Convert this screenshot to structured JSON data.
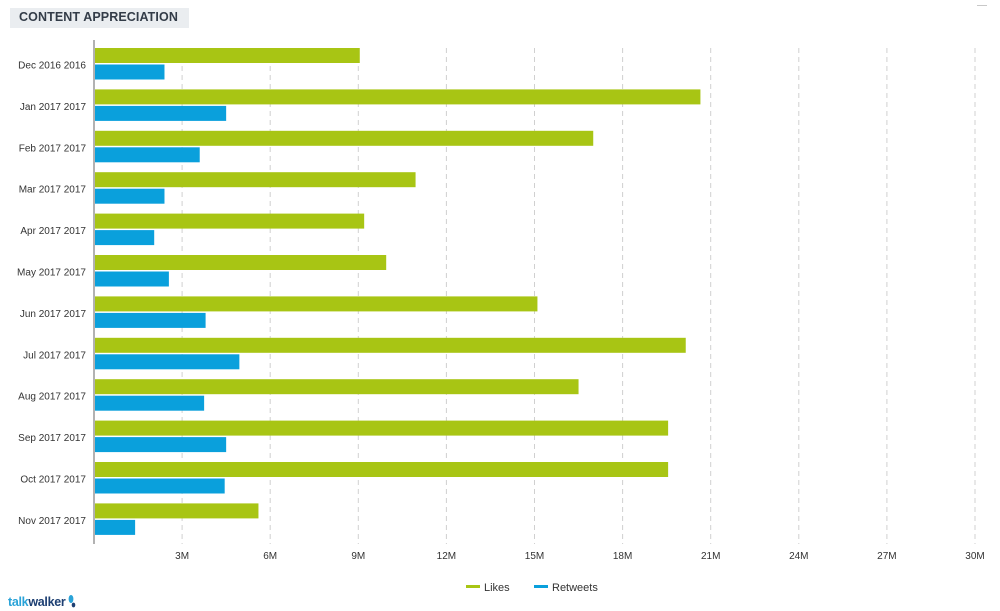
{
  "widget": {
    "title": "CONTENT APPRECIATION",
    "brand": {
      "part1": "talk",
      "part2": "walker"
    }
  },
  "colors": {
    "likes": "#a8c514",
    "retweets": "#0aa0dc",
    "axis": "#999999",
    "grid": "#d0d0d0"
  },
  "chart_data": {
    "type": "bar",
    "orientation": "horizontal",
    "title": "CONTENT APPRECIATION",
    "categories": [
      "Dec 2016 2016",
      "Jan 2017 2017",
      "Feb 2017 2017",
      "Mar 2017 2017",
      "Apr 2017 2017",
      "May 2017 2017",
      "Jun 2017 2017",
      "Jul 2017 2017",
      "Aug 2017 2017",
      "Sep 2017 2017",
      "Oct 2017 2017",
      "Nov 2017 2017"
    ],
    "series": [
      {
        "name": "Likes",
        "values": [
          9.05,
          20.65,
          17.0,
          10.95,
          9.2,
          9.95,
          15.1,
          20.15,
          16.5,
          19.55,
          19.55,
          5.6
        ]
      },
      {
        "name": "Retweets",
        "values": [
          2.4,
          4.5,
          3.6,
          2.4,
          2.05,
          2.55,
          3.8,
          4.95,
          3.75,
          4.5,
          4.45,
          1.4
        ]
      }
    ],
    "x_ticks": [
      "3M",
      "6M",
      "9M",
      "12M",
      "15M",
      "18M",
      "21M",
      "24M",
      "27M",
      "30M"
    ],
    "x_tick_values": [
      3,
      6,
      9,
      12,
      15,
      18,
      21,
      24,
      27,
      30
    ],
    "xlim": [
      0,
      30
    ],
    "x_unit": "millions",
    "grid": true,
    "legend_position": "bottom-center"
  }
}
